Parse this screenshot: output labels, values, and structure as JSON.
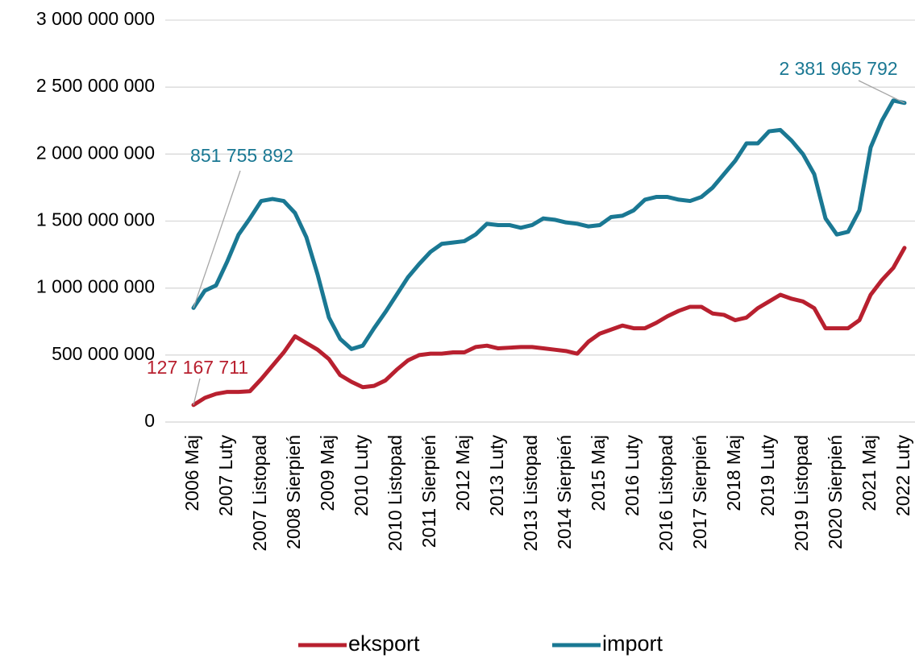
{
  "chart_data": {
    "type": "line",
    "categories": [
      "2006 Maj",
      null,
      null,
      "2007 Luty",
      null,
      null,
      "2007 Listopad",
      null,
      null,
      "2008 Sierpień",
      null,
      null,
      "2009 Maj",
      null,
      null,
      "2010 Luty",
      null,
      null,
      "2010 Listopad",
      null,
      null,
      "2011 Sierpień",
      null,
      null,
      "2012 Maj",
      null,
      null,
      "2013 Luty",
      null,
      null,
      "2013 Listopad",
      null,
      null,
      "2014 Sierpień",
      null,
      null,
      "2015 Maj",
      null,
      null,
      "2016 Luty",
      null,
      null,
      "2016 Listopad",
      null,
      null,
      "2017 Sierpień",
      null,
      null,
      "2018 Maj",
      null,
      null,
      "2019 Luty",
      null,
      null,
      "2019 Listopad",
      null,
      null,
      "2020 Sierpień",
      null,
      null,
      "2021 Maj",
      null,
      null,
      "2022 Luty"
    ],
    "series": [
      {
        "name": "eksport",
        "color": "#b8202f",
        "values": [
          127167711,
          180000000,
          210000000,
          225000000,
          225000000,
          230000000,
          320000000,
          420000000,
          520000000,
          640000000,
          590000000,
          540000000,
          470000000,
          350000000,
          300000000,
          260000000,
          270000000,
          310000000,
          390000000,
          460000000,
          500000000,
          510000000,
          510000000,
          520000000,
          520000000,
          560000000,
          570000000,
          550000000,
          555000000,
          560000000,
          560000000,
          550000000,
          540000000,
          530000000,
          510000000,
          600000000,
          660000000,
          690000000,
          720000000,
          700000000,
          700000000,
          740000000,
          790000000,
          830000000,
          860000000,
          860000000,
          810000000,
          800000000,
          760000000,
          780000000,
          850000000,
          900000000,
          950000000,
          920000000,
          900000000,
          850000000,
          700000000,
          700000000,
          700000000,
          760000000,
          950000000,
          1060000000,
          1150000000,
          1300000000
        ],
        "value_labels": [
          "127 167 711",
          null,
          null,
          null,
          null,
          null,
          null,
          null,
          null,
          null,
          null,
          null,
          null,
          null,
          null,
          null,
          null,
          null,
          null,
          null,
          null,
          null,
          null,
          null,
          null,
          null,
          null,
          null,
          null,
          null,
          null,
          null,
          null,
          null,
          null,
          null,
          null,
          null,
          null,
          null,
          null,
          null,
          null,
          null,
          null,
          null,
          null,
          null,
          null,
          null,
          null,
          null,
          null,
          null,
          null,
          null,
          null,
          null,
          null,
          null,
          null,
          null,
          null,
          null
        ]
      },
      {
        "name": "import",
        "color": "#1a7893",
        "values": [
          851755892,
          980000000,
          1020000000,
          1200000000,
          1400000000,
          1520000000,
          1650000000,
          1665000000,
          1650000000,
          1560000000,
          1380000000,
          1100000000,
          780000000,
          620000000,
          545000000,
          570000000,
          700000000,
          820000000,
          950000000,
          1080000000,
          1180000000,
          1270000000,
          1330000000,
          1340000000,
          1350000000,
          1400000000,
          1480000000,
          1470000000,
          1470000000,
          1450000000,
          1470000000,
          1520000000,
          1510000000,
          1490000000,
          1480000000,
          1460000000,
          1470000000,
          1530000000,
          1540000000,
          1580000000,
          1660000000,
          1680000000,
          1680000000,
          1660000000,
          1650000000,
          1680000000,
          1750000000,
          1850000000,
          1950000000,
          2080000000,
          2080000000,
          2170000000,
          2180000000,
          2100000000,
          2000000000,
          1850000000,
          1520000000,
          1400000000,
          1420000000,
          1580000000,
          2050000000,
          2250000000,
          2400000000,
          2381965792
        ],
        "value_labels": [
          "851 755 892",
          null,
          null,
          null,
          null,
          null,
          null,
          null,
          null,
          null,
          null,
          null,
          null,
          null,
          null,
          null,
          null,
          null,
          null,
          null,
          null,
          null,
          null,
          null,
          null,
          null,
          null,
          null,
          null,
          null,
          null,
          null,
          null,
          null,
          null,
          null,
          null,
          null,
          null,
          null,
          null,
          null,
          null,
          null,
          null,
          null,
          null,
          null,
          null,
          null,
          null,
          null,
          null,
          null,
          null,
          null,
          null,
          null,
          null,
          null,
          null,
          null,
          null,
          "2 381 965 792"
        ]
      }
    ],
    "ylim": [
      0,
      3000000000
    ],
    "yticks": [
      0,
      {
        "value": 500000000,
        "label": "500 000 000"
      },
      {
        "value": 1000000000,
        "label": "1 000 000 000"
      },
      {
        "value": 1500000000,
        "label": "1 500 000 000"
      },
      {
        "value": 2000000000,
        "label": "2 000 000 000"
      },
      {
        "value": 2500000000,
        "label": "2 500 000 000"
      },
      {
        "value": 3000000000,
        "label": "3 000 000 000"
      }
    ],
    "grid": true,
    "legend": "bottom"
  }
}
